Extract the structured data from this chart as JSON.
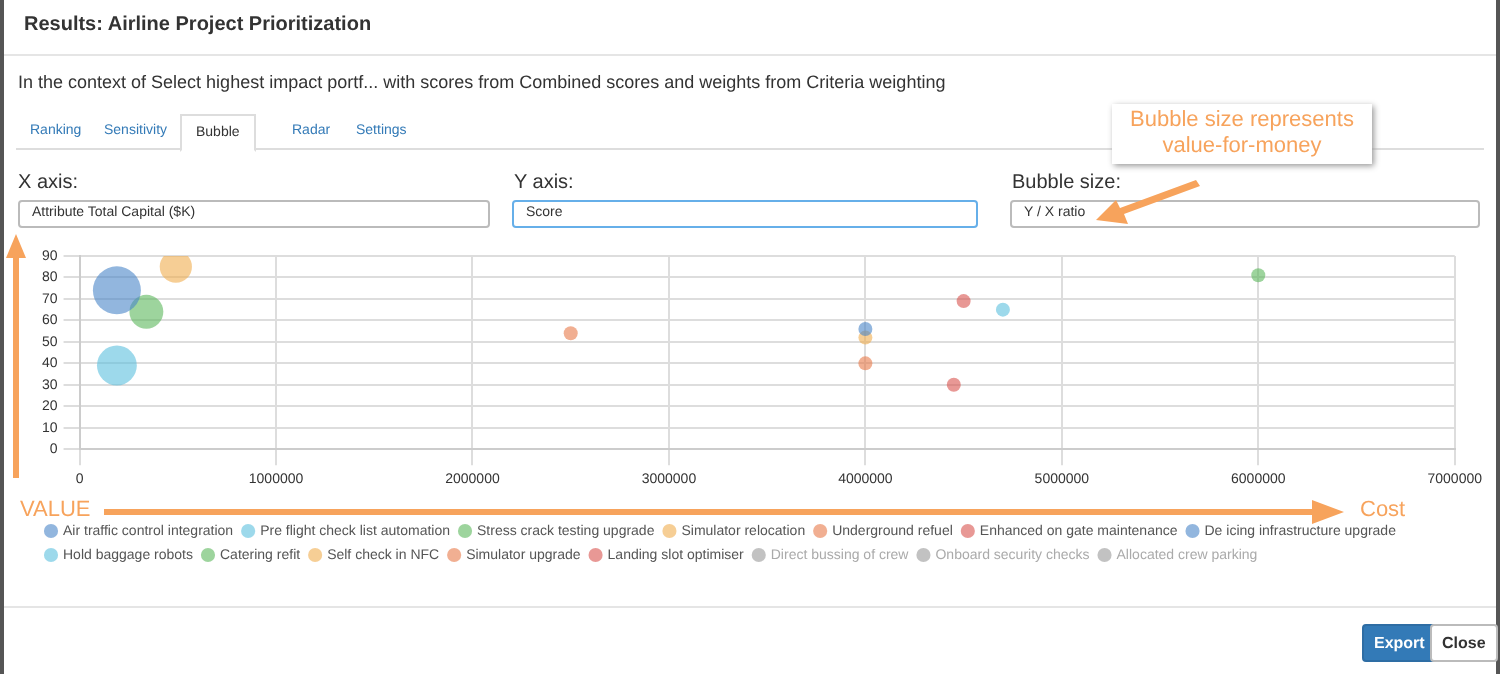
{
  "chart_data": {
    "type": "bubble",
    "title": "Results: Airline Project Prioritization",
    "subtitle": "In the context of Select highest impact portf... with scores from Combined scores and weights from Criteria weighting",
    "annotations": [
      "Ranking",
      "Sensitivity",
      "Bubble",
      "Radar",
      "Settings",
      "X axis:",
      "Attribute Total Capital ($K)",
      "Y axis:",
      "Score",
      "Bubble size:",
      "Y / X ratio",
      "Bubble size represents value-for-money",
      "VALUE",
      "Cost",
      "Export",
      "Close"
    ],
    "series": [
      {
        "name": "Air traffic control integration",
        "color": "#4a86c8",
        "x": [
          190000
        ],
        "values": [
          74
        ],
        "sizes": [
          1
        ]
      },
      {
        "name": "Pre flight check list automation",
        "color": "#5bc0de",
        "x": [
          190000
        ],
        "values": [
          39
        ],
        "sizes": [
          0.69
        ]
      },
      {
        "name": "Stress crack testing upgrade",
        "color": "#5cb85c",
        "x": [
          340000
        ],
        "values": [
          64
        ],
        "sizes": [
          0.5
        ]
      },
      {
        "name": "Simulator relocation",
        "color": "#f0ad4e",
        "x": [
          490000
        ],
        "values": [
          85
        ],
        "sizes": [
          0.45
        ]
      },
      {
        "name": "Underground refuel",
        "color": "#e8794a",
        "x": [
          2500000
        ],
        "values": [
          54
        ],
        "sizes": [
          0.085
        ]
      },
      {
        "name": "Enhanced on gate maintenance",
        "color": "#d9534f",
        "x": [
          4500000
        ],
        "values": [
          69
        ],
        "sizes": [
          0.085
        ]
      },
      {
        "name": "De icing infrastructure upgrade",
        "color": "#4a86c8",
        "x": [
          4000000
        ],
        "values": [
          56
        ],
        "sizes": [
          0.085
        ]
      },
      {
        "name": "Hold baggage robots",
        "color": "#5bc0de",
        "x": [
          4700000
        ],
        "values": [
          65
        ],
        "sizes": [
          0.085
        ]
      },
      {
        "name": "Catering refit",
        "color": "#5cb85c",
        "x": [
          6000000
        ],
        "values": [
          81
        ],
        "sizes": [
          0.085
        ]
      },
      {
        "name": "Self check in NFC",
        "color": "#f0ad4e",
        "x": [
          4000000
        ],
        "values": [
          52
        ],
        "sizes": [
          0.085
        ]
      },
      {
        "name": "Simulator upgrade",
        "color": "#e8794a",
        "x": [
          4000000
        ],
        "values": [
          40
        ],
        "sizes": [
          0.085
        ]
      },
      {
        "name": "Landing slot optimiser",
        "color": "#d9534f",
        "x": [
          4450000
        ],
        "values": [
          30
        ],
        "sizes": [
          0.085
        ]
      },
      {
        "name": "Direct bussing of crew",
        "color": "#999999"
      },
      {
        "name": "Onboard security checks",
        "color": "#999999"
      },
      {
        "name": "Allocated crew parking",
        "color": "#999999"
      }
    ],
    "xlim": [
      0,
      7000000
    ],
    "xticks": [
      0,
      1000000,
      2000000,
      3000000,
      4000000,
      5000000,
      6000000,
      7000000
    ],
    "ylim": [
      0,
      90
    ],
    "yticks": [
      0,
      10,
      20,
      30,
      40,
      50,
      60,
      70,
      80,
      90
    ],
    "grid": true,
    "legend": "bottom"
  }
}
